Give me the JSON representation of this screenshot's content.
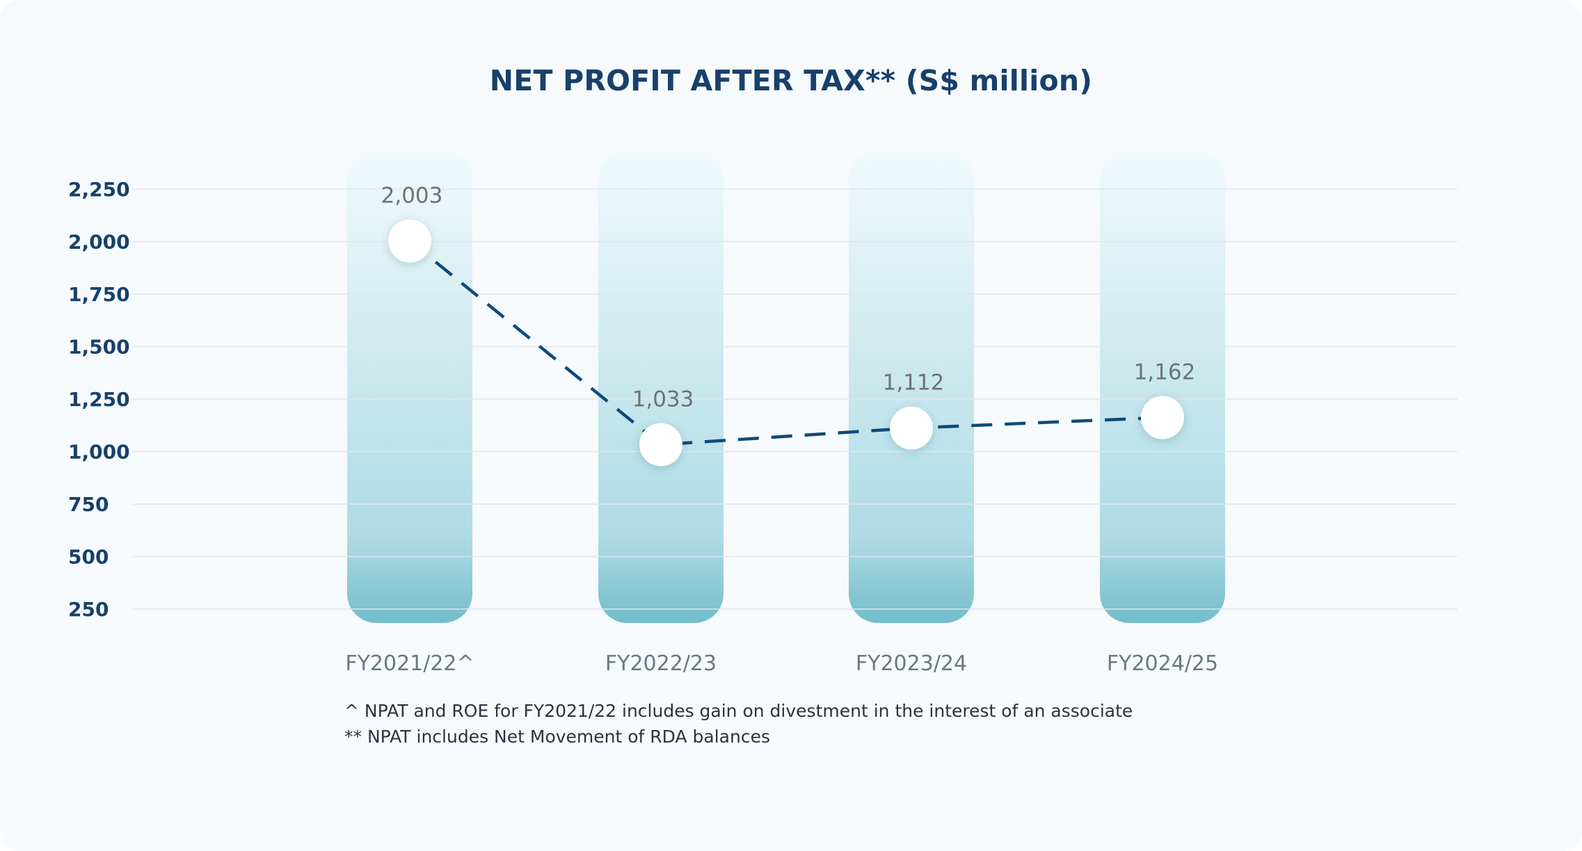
{
  "chart_data": {
    "type": "line",
    "title": "NET PROFIT AFTER TAX** (S$ million)",
    "xlabel": "",
    "ylabel": "",
    "categories": [
      "FY2021/22^",
      "FY2022/23",
      "FY2023/24",
      "FY2024/25"
    ],
    "series": [
      {
        "name": "Net Profit After Tax",
        "values": [
          2003,
          1033,
          1112,
          1162
        ],
        "labels": [
          "2,003",
          "1,033",
          "1,112",
          "1,162"
        ],
        "style": "dashed",
        "color": "#0e4a7a"
      }
    ],
    "yticks": [
      250,
      500,
      750,
      1000,
      1250,
      1500,
      1750,
      2000,
      2250
    ],
    "ytick_labels": [
      "250",
      "500",
      "750",
      "1,000",
      "1,250",
      "1,500",
      "1,750",
      "2,000",
      "2,250"
    ],
    "ylim": [
      250,
      2250
    ],
    "grid": true,
    "background_columns": true
  },
  "footnotes": [
    "^ NPAT and ROE for FY2021/22 includes gain on divestment in the interest of an associate",
    "** NPAT includes Net Movement of RDA balances"
  ],
  "colors": {
    "title": "#17406b",
    "axis_text": "#17406b",
    "category_text": "#6d7780",
    "value_text": "#6d7276",
    "line": "#0e4a7a",
    "grid": "#e1e6ea",
    "column_top": "#f1fafc",
    "column_bottom": "#72bdcb",
    "marker": "#ffffff"
  }
}
